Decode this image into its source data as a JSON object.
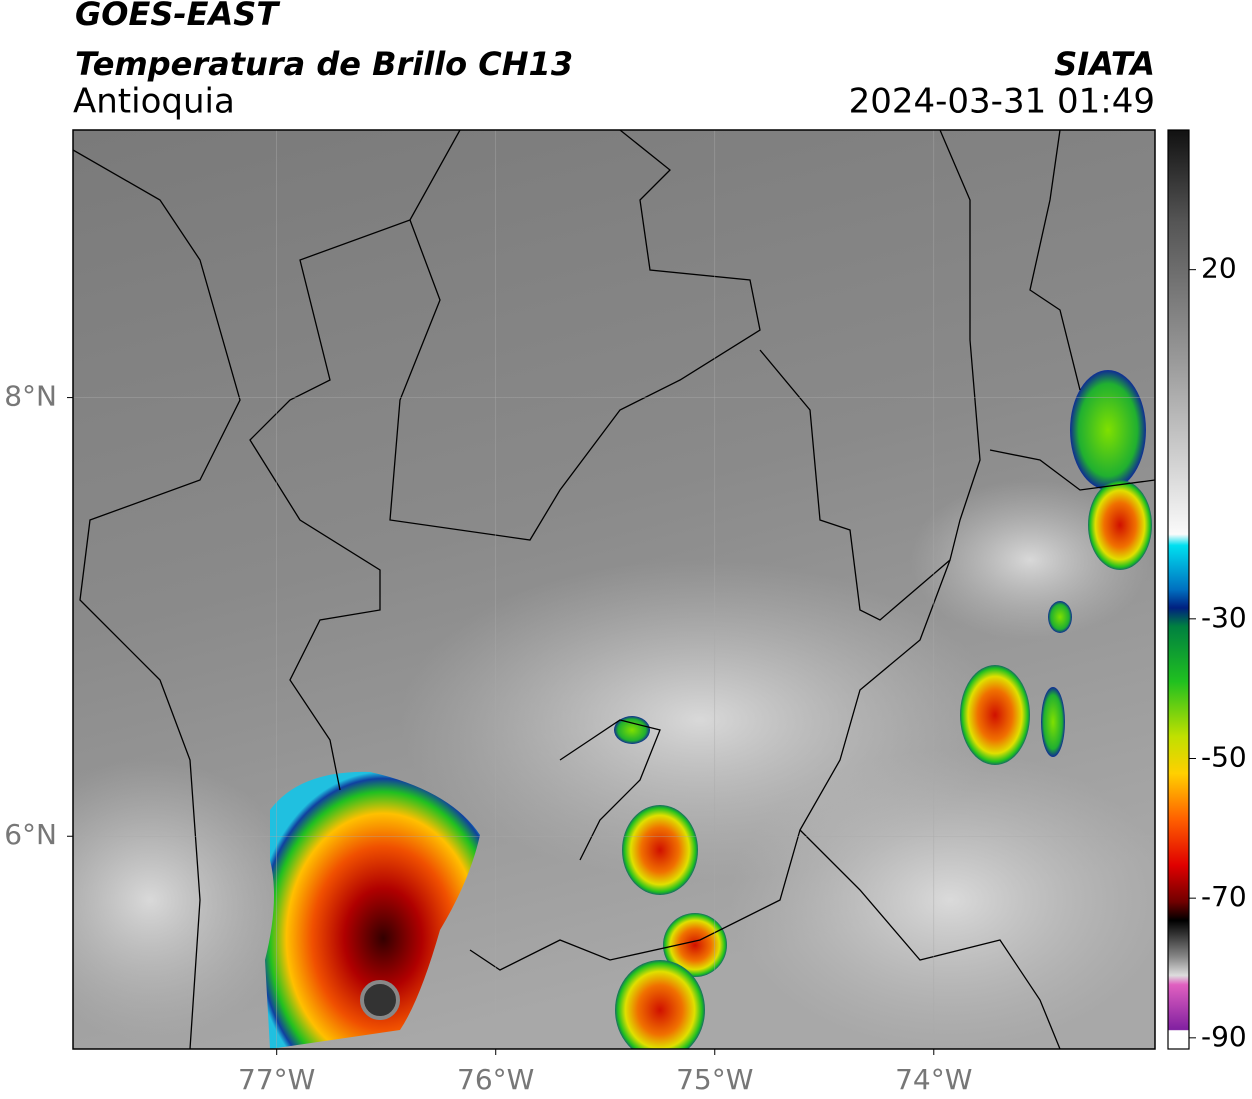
{
  "header": {
    "title": "GOES-EAST",
    "subtitle": "Temperatura de Brillo CH13",
    "region": "Antioquia",
    "source": "SIATA",
    "datetime": "2024-03-31 01:49"
  },
  "map": {
    "xlim": [
      -77.93,
      -72.99
    ],
    "ylim": [
      5.03,
      9.22
    ],
    "xticks": [
      {
        "value": -77,
        "label": "77°W"
      },
      {
        "value": -76,
        "label": "76°W"
      },
      {
        "value": -75,
        "label": "75°W"
      },
      {
        "value": -74,
        "label": "74°W"
      }
    ],
    "yticks": [
      {
        "value": 8,
        "label": "8°N"
      },
      {
        "value": 6,
        "label": "6°N"
      }
    ],
    "grid": true
  },
  "colorbar": {
    "lim": [
      -91.6,
      40
    ],
    "ticks": [
      20,
      -30,
      -50,
      -70,
      -90
    ]
  }
}
